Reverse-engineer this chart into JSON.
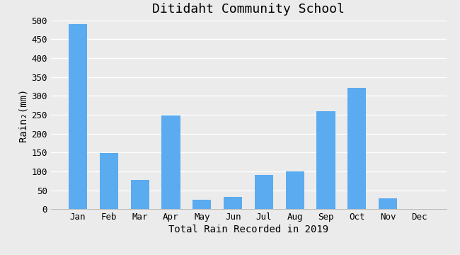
{
  "title": "Ditidaht Community School",
  "xlabel": "Total Rain Recorded in 2019",
  "ylabel": "Rain₂(mm)",
  "months": [
    "Jan",
    "Feb",
    "Mar",
    "Apr",
    "May",
    "Jun",
    "Jul",
    "Aug",
    "Sep",
    "Oct",
    "Nov",
    "Dec"
  ],
  "values": [
    490,
    148,
    78,
    248,
    25,
    32,
    91,
    100,
    260,
    322,
    28,
    0
  ],
  "bar_color": "#5aabf0",
  "background_color": "#ebebeb",
  "grid_color": "#ffffff",
  "ylim": [
    0,
    500
  ],
  "yticks": [
    0,
    50,
    100,
    150,
    200,
    250,
    300,
    350,
    400,
    450,
    500
  ],
  "title_fontsize": 13,
  "label_fontsize": 10,
  "tick_fontsize": 9,
  "font_family": "monospace"
}
